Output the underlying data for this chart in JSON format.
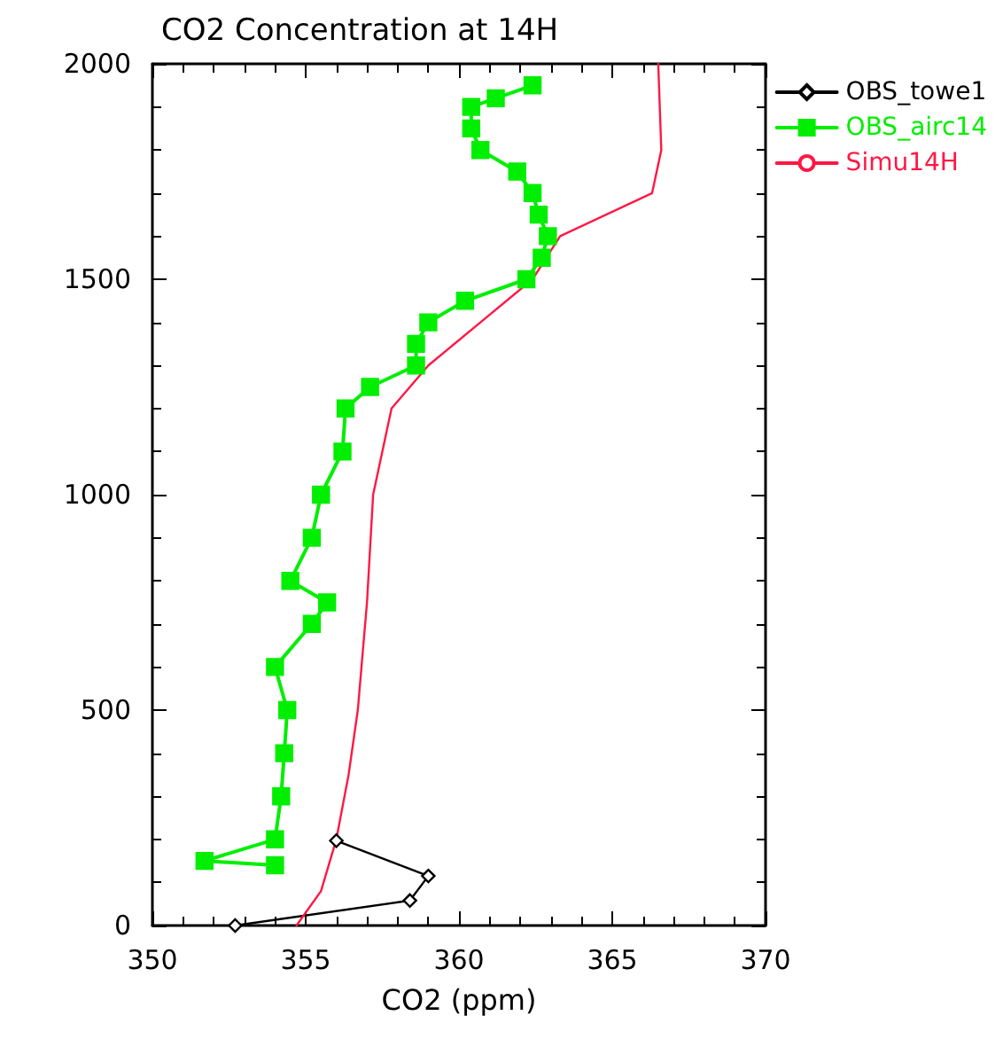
{
  "chart_data": {
    "type": "line",
    "title": "CO2 Concentration at 14H",
    "xlabel": "CO2 (ppm)",
    "xlim": [
      350,
      370
    ],
    "xticks": [
      350,
      355,
      360,
      365,
      370
    ],
    "ylim": [
      0,
      2000
    ],
    "yticks": [
      0,
      500,
      1000,
      1500,
      2000
    ],
    "grid": false,
    "legend": "top right",
    "line_style": "solid",
    "series": [
      {
        "name": "OBS_towe1",
        "color": "#000000",
        "marker": "diamond",
        "x": [
          352.7,
          358.4,
          359.0,
          356.0
        ],
        "values": [
          0,
          58,
          115,
          197
        ]
      },
      {
        "name": "OBS_airc14",
        "color": "#00ee00",
        "marker": "square",
        "x": [
          354.0,
          351.7,
          354.0,
          354.2,
          354.3,
          354.4,
          354.0,
          355.2,
          355.7,
          354.5,
          355.2,
          355.5,
          356.2,
          356.3,
          357.1,
          358.6,
          358.6,
          359.0,
          360.2,
          362.2,
          362.7,
          362.9,
          362.6,
          362.4,
          361.9,
          360.7,
          360.4,
          360.4,
          361.2,
          362.4
        ],
        "values": [
          140,
          150,
          200,
          300,
          400,
          500,
          600,
          700,
          750,
          800,
          900,
          1000,
          1100,
          1200,
          1250,
          1300,
          1350,
          1400,
          1450,
          1500,
          1550,
          1600,
          1650,
          1700,
          1750,
          1800,
          1850,
          1900,
          1920,
          1950
        ]
      },
      {
        "name": "Simu14H",
        "color": "#ff1744",
        "marker": "none",
        "x": [
          354.7,
          355.5,
          356.0,
          356.4,
          356.7,
          357.0,
          357.2,
          357.8,
          359.0,
          360.7,
          362.4,
          363.3,
          366.3,
          366.6,
          366.5
        ],
        "values": [
          0,
          80,
          200,
          350,
          500,
          750,
          1000,
          1200,
          1300,
          1400,
          1500,
          1600,
          1700,
          1800,
          2000
        ]
      }
    ]
  }
}
